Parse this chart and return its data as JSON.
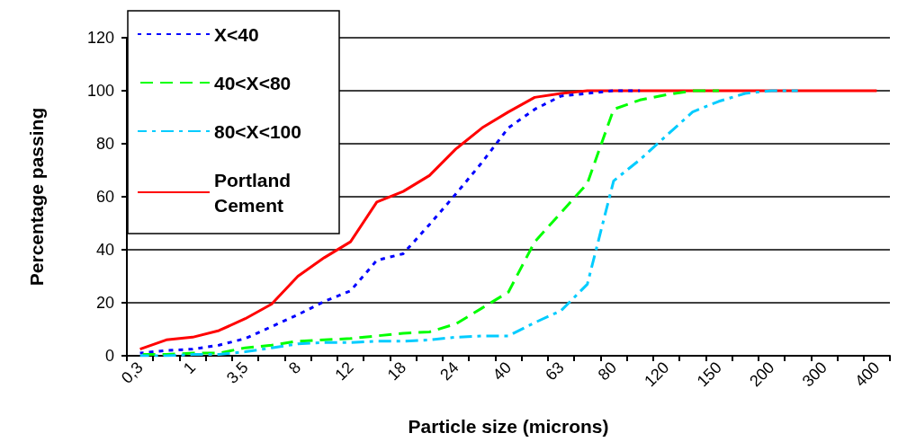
{
  "chart_data": {
    "type": "line",
    "xlabel": "Particle size (microns)",
    "ylabel": "Percentage passing",
    "categories": [
      "0,3",
      null,
      "1",
      null,
      "3,5",
      null,
      "8",
      null,
      "12",
      null,
      "18",
      null,
      "24",
      null,
      "40",
      null,
      "63",
      null,
      "80",
      null,
      "120",
      null,
      "150",
      null,
      "200",
      null,
      "300",
      null,
      "400"
    ],
    "series": [
      {
        "name": "X<40",
        "color": "#0000ff",
        "line_style": "dotted",
        "values": [
          1,
          2,
          2.5,
          4,
          6.5,
          11,
          15.5,
          20.5,
          24.5,
          36,
          38.5,
          49.5,
          61,
          73,
          86,
          93,
          98,
          99,
          100,
          100,
          null,
          null,
          null,
          null,
          null,
          null,
          null,
          null,
          null
        ]
      },
      {
        "name": "40<X<80",
        "color": "#00ff00",
        "line_style": "dashed",
        "values": [
          0.5,
          0.5,
          1,
          1,
          3,
          4,
          5.5,
          6,
          6.5,
          7.5,
          8.5,
          9,
          12,
          18,
          24,
          43,
          54,
          65,
          93,
          96.5,
          98.5,
          100,
          100,
          null,
          null,
          null,
          null,
          null,
          null
        ]
      },
      {
        "name": "80<X<100",
        "color": "#00ccff",
        "line_style": "dashdot",
        "values": [
          0,
          0,
          0.5,
          0.5,
          1.5,
          3,
          4.5,
          5,
          5,
          5.5,
          5.5,
          6,
          7,
          7.5,
          7.5,
          12.5,
          17,
          27,
          66,
          74,
          83,
          92,
          96,
          99,
          100,
          100,
          null,
          null,
          null
        ]
      },
      {
        "name": "Portland Cement",
        "color": "#ff0000",
        "line_style": "solid",
        "values": [
          2.5,
          6,
          7,
          9.5,
          14,
          19.5,
          30,
          37,
          43,
          58,
          62,
          68,
          78,
          86,
          92,
          97.5,
          99,
          100,
          100,
          100,
          100,
          100,
          100,
          100,
          100,
          100,
          100,
          100,
          100
        ]
      }
    ],
    "ylim": [
      0,
      120
    ],
    "yticks": [
      0,
      20,
      40,
      60,
      80,
      100,
      120
    ],
    "grid": "y",
    "legend": "top left",
    "marker": "none"
  }
}
